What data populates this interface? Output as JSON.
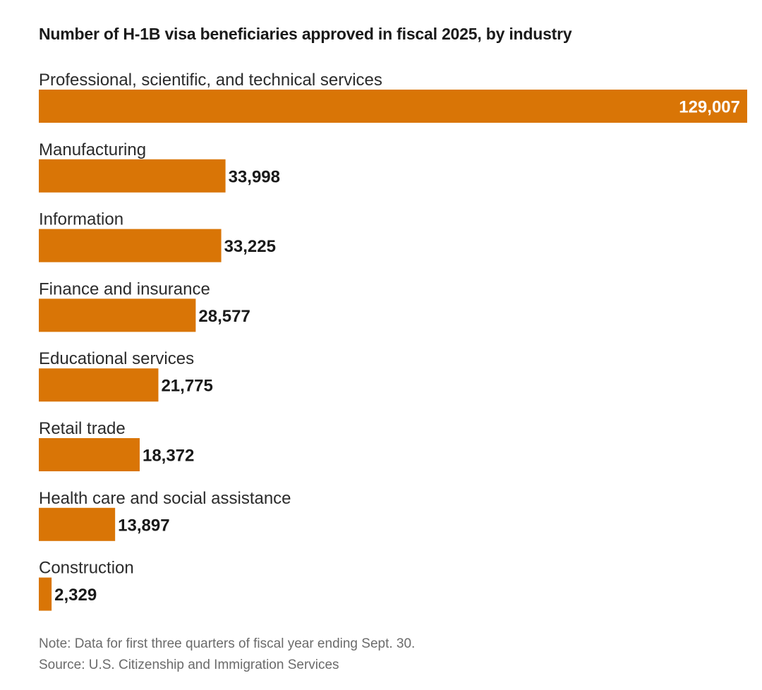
{
  "chart_data": {
    "type": "bar",
    "orientation": "horizontal",
    "title": "Number of H-1B visa beneficiaries approved in fiscal 2025, by industry",
    "categories": [
      "Professional, scientific, and technical services",
      "Manufacturing",
      "Information",
      "Finance and insurance",
      "Educational services",
      "Retail trade",
      "Health care and social assistance",
      "Construction"
    ],
    "values": [
      129007,
      33998,
      33225,
      28577,
      21775,
      18372,
      13897,
      2329
    ],
    "value_labels": [
      "129,007",
      "33,998",
      "33,225",
      "28,577",
      "21,775",
      "18,372",
      "13,897",
      "2,329"
    ],
    "xlabel": "",
    "ylabel": "",
    "xlim": [
      0,
      129007
    ],
    "grid": false,
    "legend": "none",
    "bar_color": "#D97506"
  },
  "notes": {
    "note": "Note: Data for first three quarters of fiscal year ending Sept. 30.",
    "source": "Source: U.S. Citizenship and Immigration Services"
  }
}
